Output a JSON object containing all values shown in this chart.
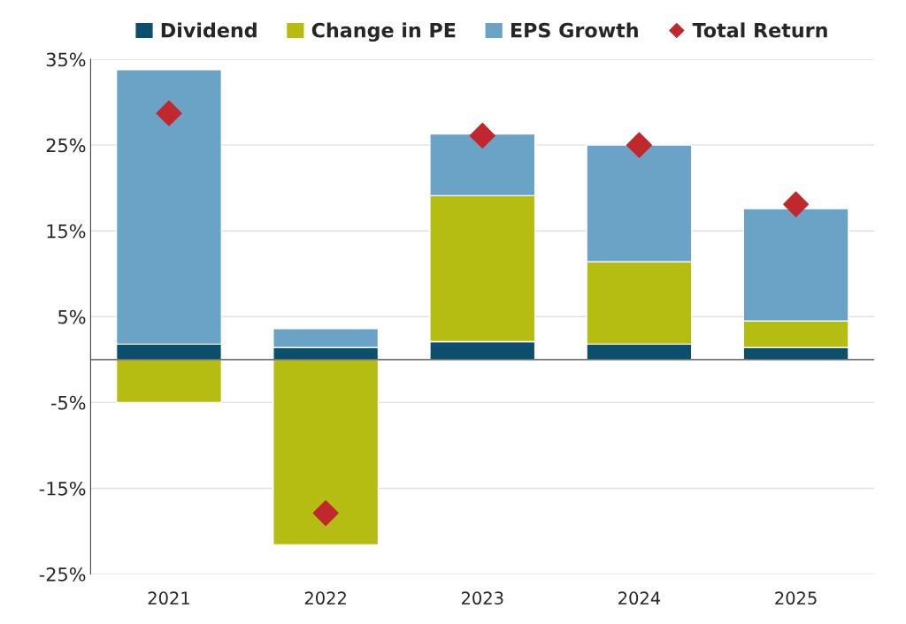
{
  "chart_data": {
    "type": "bar",
    "stacked": true,
    "categories": [
      "2021",
      "2022",
      "2023",
      "2024",
      "2025"
    ],
    "series": [
      {
        "name": "Dividend",
        "color": "#0b4f6c",
        "values": [
          1.8,
          1.4,
          2.1,
          1.8,
          1.4
        ]
      },
      {
        "name": "Change in PE",
        "color": "#b5bd12",
        "values": [
          -5.0,
          -21.6,
          17.0,
          9.6,
          3.1
        ]
      },
      {
        "name": "EPS Growth",
        "color": "#6ba3c6",
        "values": [
          32.0,
          2.2,
          7.2,
          13.6,
          13.1
        ]
      },
      {
        "name": "Total Return",
        "color": "#c0282d",
        "type": "scatter",
        "marker": "diamond",
        "values": [
          28.7,
          -17.9,
          26.1,
          25.0,
          18.1
        ]
      }
    ],
    "ylim": [
      -25,
      35
    ],
    "yticks": [
      {
        "value": -25,
        "label": "-25%"
      },
      {
        "value": -15,
        "label": "-15%"
      },
      {
        "value": -5,
        "label": "-5%"
      },
      {
        "value": 5,
        "label": "5%"
      },
      {
        "value": 15,
        "label": "15%"
      },
      {
        "value": 25,
        "label": "25%"
      },
      {
        "value": 35,
        "label": "35%"
      }
    ],
    "ref_lines": [
      {
        "axis": "y",
        "value": 0,
        "color": "#404040"
      }
    ],
    "grid": "y",
    "legend": "top"
  }
}
